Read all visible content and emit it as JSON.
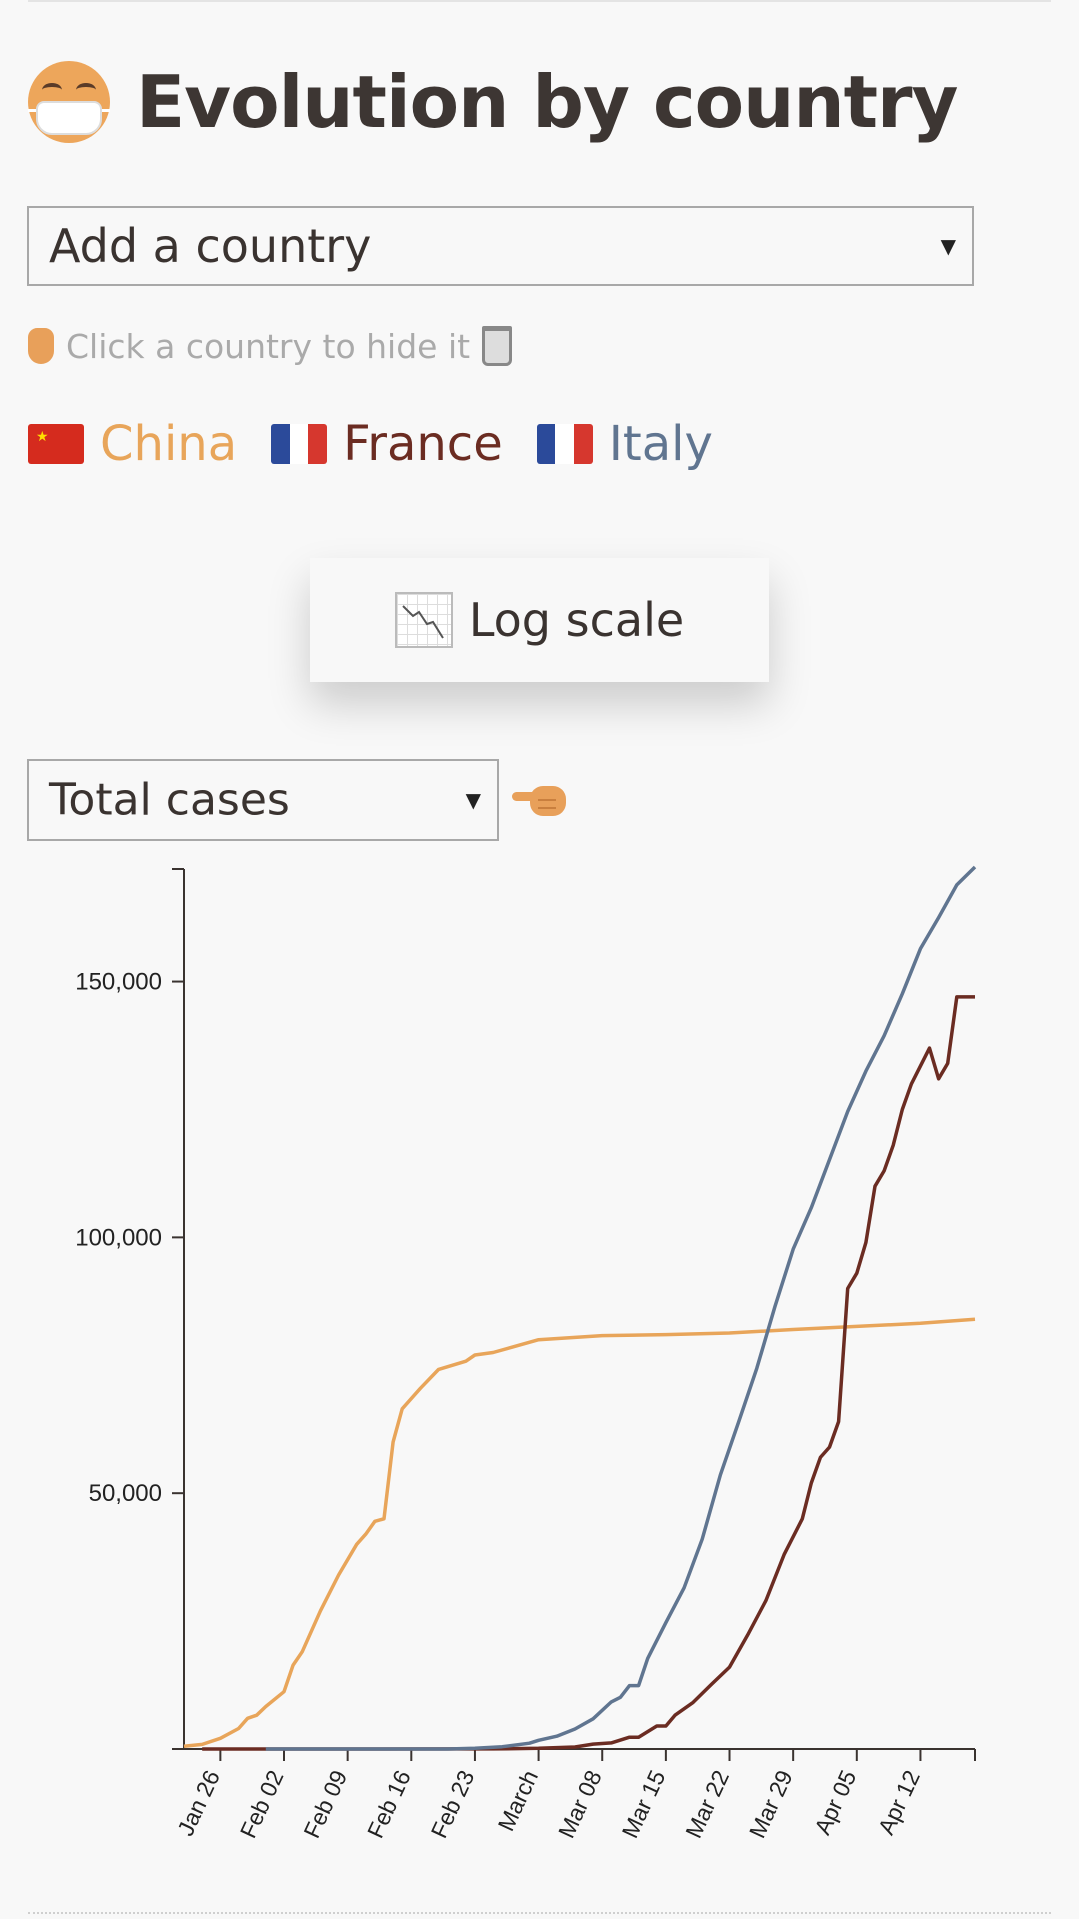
{
  "page": {
    "title": "Evolution by country",
    "title_icon": "face-with-mask-icon"
  },
  "controls": {
    "add_country_label": "Add a country",
    "hint_text": "Click a country to hide it",
    "log_scale_label": "Log scale",
    "metric_selected": "Total cases"
  },
  "countries": [
    {
      "name": "China",
      "color": "#e8a55a",
      "flag": "cn-flag-icon"
    },
    {
      "name": "France",
      "color": "#6b2c22",
      "flag": "fr-flag-icon"
    },
    {
      "name": "Italy",
      "color": "#607590",
      "flag": "it-flag-icon"
    }
  ],
  "chart_data": {
    "type": "line",
    "x_start": "2020-01-22",
    "x_end": "2020-04-18",
    "ylim": [
      0,
      172000
    ],
    "y_ticks": [
      {
        "value": 50000,
        "label": "50,000"
      },
      {
        "value": 100000,
        "label": "100,000"
      },
      {
        "value": 150000,
        "label": "150,000"
      }
    ],
    "x_ticks": [
      {
        "date": "2020-01-26",
        "label": "Jan 26"
      },
      {
        "date": "2020-02-02",
        "label": "Feb 02"
      },
      {
        "date": "2020-02-09",
        "label": "Feb 09"
      },
      {
        "date": "2020-02-16",
        "label": "Feb 16"
      },
      {
        "date": "2020-02-23",
        "label": "Feb 23"
      },
      {
        "date": "2020-03-01",
        "label": "March"
      },
      {
        "date": "2020-03-08",
        "label": "Mar 08"
      },
      {
        "date": "2020-03-15",
        "label": "Mar 15"
      },
      {
        "date": "2020-03-22",
        "label": "Mar 22"
      },
      {
        "date": "2020-03-29",
        "label": "Mar 29"
      },
      {
        "date": "2020-04-05",
        "label": "Apr 05"
      },
      {
        "date": "2020-04-12",
        "label": "Apr 12"
      }
    ],
    "series": [
      {
        "name": "China",
        "color": "#e8a55a",
        "points": [
          [
            "2020-01-22",
            548
          ],
          [
            "2020-01-24",
            900
          ],
          [
            "2020-01-26",
            2100
          ],
          [
            "2020-01-28",
            4000
          ],
          [
            "2020-01-29",
            6000
          ],
          [
            "2020-01-30",
            6600
          ],
          [
            "2020-01-31",
            8300
          ],
          [
            "2020-02-02",
            11200
          ],
          [
            "2020-02-03",
            16400
          ],
          [
            "2020-02-04",
            19000
          ],
          [
            "2020-02-06",
            27000
          ],
          [
            "2020-02-08",
            34000
          ],
          [
            "2020-02-10",
            40000
          ],
          [
            "2020-02-11",
            42000
          ],
          [
            "2020-02-12",
            44500
          ],
          [
            "2020-02-13",
            45000
          ],
          [
            "2020-02-14",
            60000
          ],
          [
            "2020-02-15",
            66500
          ],
          [
            "2020-02-17",
            70500
          ],
          [
            "2020-02-19",
            74200
          ],
          [
            "2020-02-22",
            75800
          ],
          [
            "2020-02-23",
            77000
          ],
          [
            "2020-02-25",
            77500
          ],
          [
            "2020-02-28",
            79000
          ],
          [
            "2020-03-01",
            80000
          ],
          [
            "2020-03-08",
            80800
          ],
          [
            "2020-03-15",
            81000
          ],
          [
            "2020-03-22",
            81300
          ],
          [
            "2020-03-29",
            82000
          ],
          [
            "2020-04-05",
            82600
          ],
          [
            "2020-04-12",
            83200
          ],
          [
            "2020-04-18",
            84000
          ]
        ]
      },
      {
        "name": "France",
        "color": "#6b2c22",
        "points": [
          [
            "2020-01-24",
            0
          ],
          [
            "2020-02-25",
            14
          ],
          [
            "2020-03-01",
            130
          ],
          [
            "2020-03-05",
            400
          ],
          [
            "2020-03-07",
            950
          ],
          [
            "2020-03-09",
            1200
          ],
          [
            "2020-03-11",
            2300
          ],
          [
            "2020-03-12",
            2300
          ],
          [
            "2020-03-14",
            4500
          ],
          [
            "2020-03-15",
            4500
          ],
          [
            "2020-03-16",
            6600
          ],
          [
            "2020-03-18",
            9100
          ],
          [
            "2020-03-20",
            12600
          ],
          [
            "2020-03-22",
            16000
          ],
          [
            "2020-03-24",
            22300
          ],
          [
            "2020-03-26",
            29000
          ],
          [
            "2020-03-28",
            38000
          ],
          [
            "2020-03-30",
            45000
          ],
          [
            "2020-03-31",
            52000
          ],
          [
            "2020-04-01",
            57000
          ],
          [
            "2020-04-02",
            59000
          ],
          [
            "2020-04-03",
            64000
          ],
          [
            "2020-04-04",
            90000
          ],
          [
            "2020-04-05",
            93000
          ],
          [
            "2020-04-06",
            99000
          ],
          [
            "2020-04-07",
            110000
          ],
          [
            "2020-04-08",
            113000
          ],
          [
            "2020-04-09",
            118000
          ],
          [
            "2020-04-10",
            125000
          ],
          [
            "2020-04-11",
            130000
          ],
          [
            "2020-04-13",
            137000
          ],
          [
            "2020-04-14",
            131000
          ],
          [
            "2020-04-15",
            134000
          ],
          [
            "2020-04-16",
            147000
          ],
          [
            "2020-04-18",
            147000
          ]
        ]
      },
      {
        "name": "Italy",
        "color": "#607590",
        "points": [
          [
            "2020-01-31",
            2
          ],
          [
            "2020-02-20",
            3
          ],
          [
            "2020-02-23",
            150
          ],
          [
            "2020-02-26",
            450
          ],
          [
            "2020-02-29",
            1130
          ],
          [
            "2020-03-01",
            1700
          ],
          [
            "2020-03-03",
            2500
          ],
          [
            "2020-03-05",
            3900
          ],
          [
            "2020-03-07",
            5900
          ],
          [
            "2020-03-09",
            9200
          ],
          [
            "2020-03-10",
            10100
          ],
          [
            "2020-03-11",
            12400
          ],
          [
            "2020-03-12",
            12400
          ],
          [
            "2020-03-13",
            17700
          ],
          [
            "2020-03-15",
            24700
          ],
          [
            "2020-03-17",
            31500
          ],
          [
            "2020-03-19",
            41000
          ],
          [
            "2020-03-21",
            53600
          ],
          [
            "2020-03-23",
            63900
          ],
          [
            "2020-03-25",
            74400
          ],
          [
            "2020-03-27",
            86500
          ],
          [
            "2020-03-29",
            97700
          ],
          [
            "2020-03-31",
            105800
          ],
          [
            "2020-04-02",
            115200
          ],
          [
            "2020-04-04",
            124600
          ],
          [
            "2020-04-06",
            132500
          ],
          [
            "2020-04-08",
            139400
          ],
          [
            "2020-04-10",
            147600
          ],
          [
            "2020-04-12",
            156400
          ],
          [
            "2020-04-14",
            162500
          ],
          [
            "2020-04-16",
            168900
          ],
          [
            "2020-04-18",
            172400
          ]
        ]
      }
    ]
  }
}
